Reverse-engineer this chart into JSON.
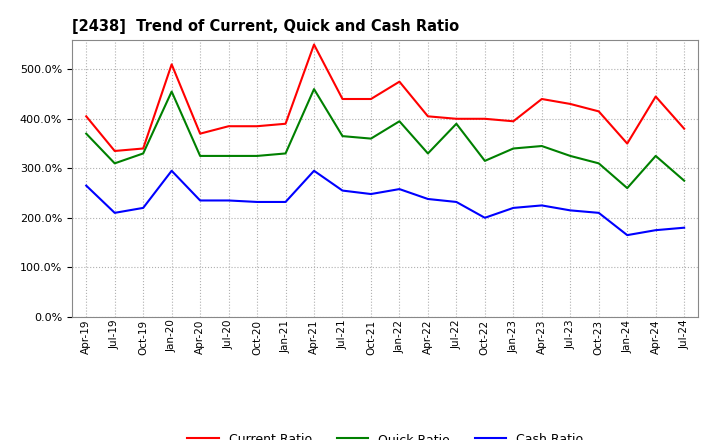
{
  "title": "[2438]  Trend of Current, Quick and Cash Ratio",
  "labels": [
    "Apr-19",
    "Jul-19",
    "Oct-19",
    "Jan-20",
    "Apr-20",
    "Jul-20",
    "Oct-20",
    "Jan-21",
    "Apr-21",
    "Jul-21",
    "Oct-21",
    "Jan-22",
    "Apr-22",
    "Jul-22",
    "Oct-22",
    "Jan-23",
    "Apr-23",
    "Jul-23",
    "Oct-23",
    "Jan-24",
    "Apr-24",
    "Jul-24"
  ],
  "current_ratio": [
    405,
    335,
    340,
    510,
    370,
    385,
    385,
    390,
    550,
    440,
    440,
    475,
    405,
    400,
    400,
    395,
    440,
    430,
    415,
    350,
    445,
    380
  ],
  "quick_ratio": [
    370,
    310,
    330,
    455,
    325,
    325,
    325,
    330,
    460,
    365,
    360,
    395,
    330,
    390,
    315,
    340,
    345,
    325,
    310,
    260,
    325,
    275
  ],
  "cash_ratio": [
    265,
    210,
    220,
    295,
    235,
    235,
    232,
    232,
    295,
    255,
    248,
    258,
    238,
    232,
    200,
    220,
    225,
    215,
    210,
    165,
    175,
    180
  ],
  "current_color": "#FF0000",
  "quick_color": "#008000",
  "cash_color": "#0000FF",
  "ylim": [
    0,
    560
  ],
  "yticks": [
    0,
    100,
    200,
    300,
    400,
    500
  ],
  "background_color": "#ffffff",
  "grid_color": "#b0b0b0"
}
